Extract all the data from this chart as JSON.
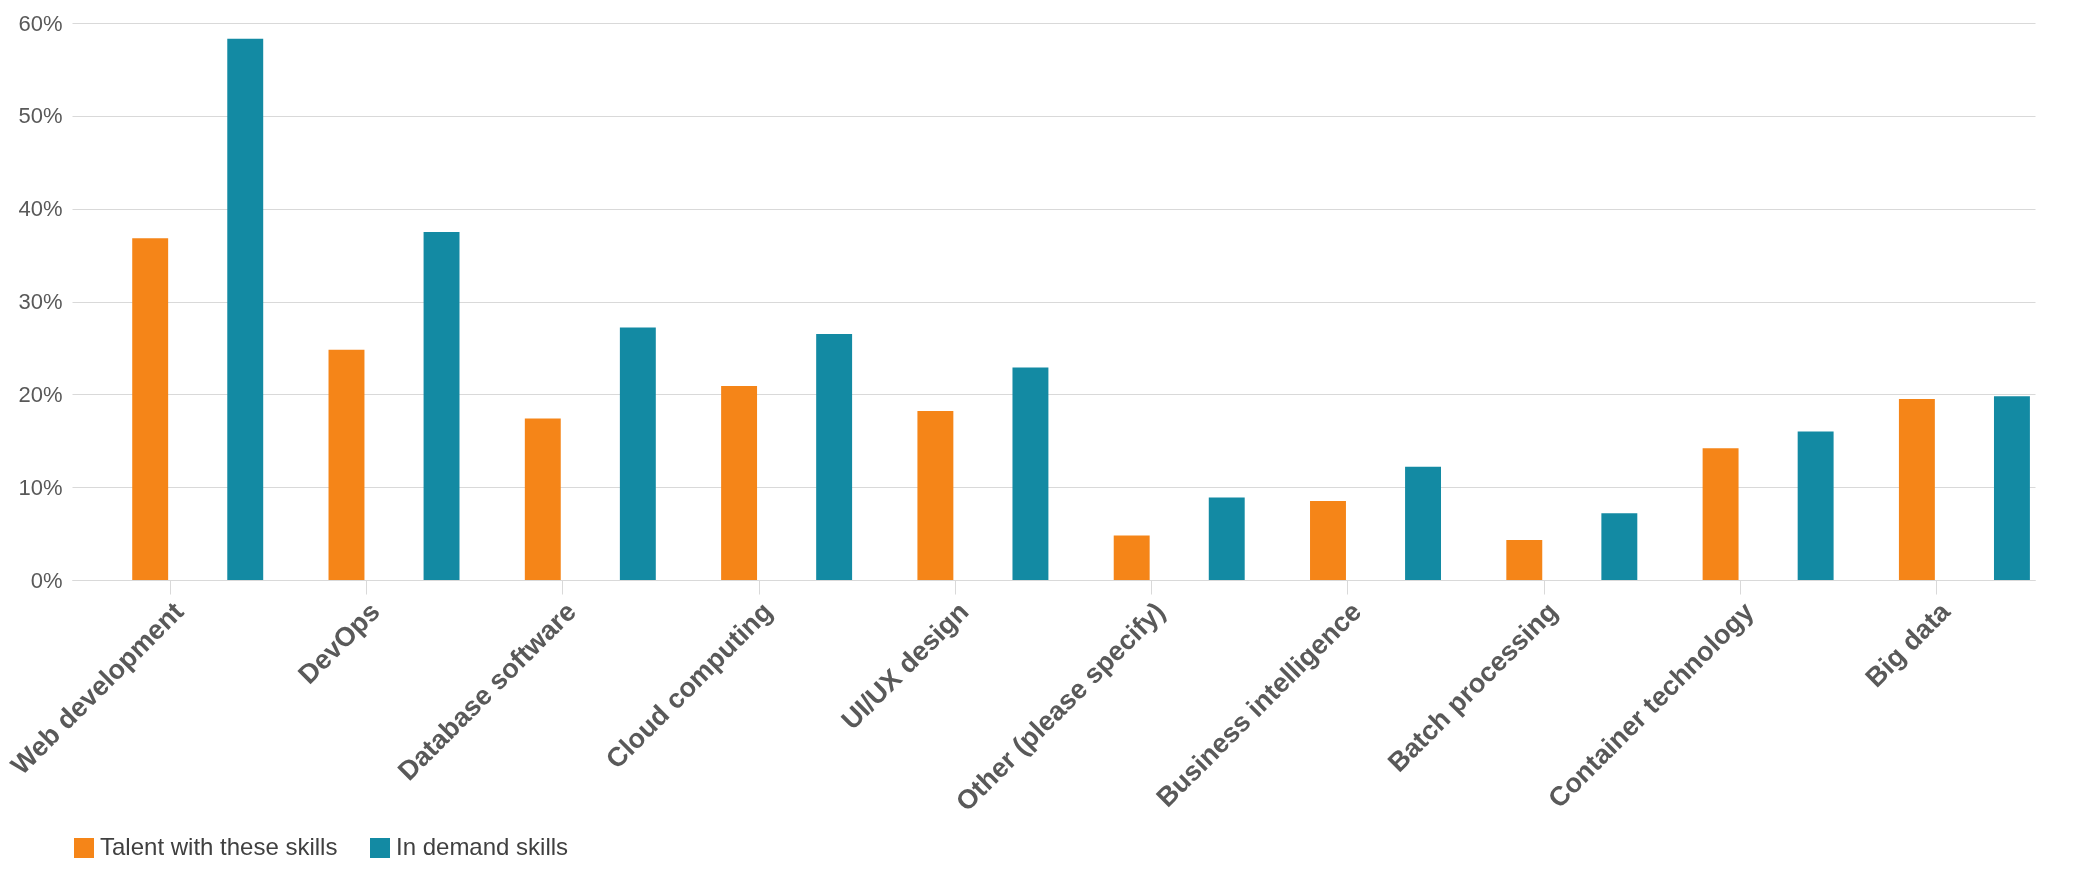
{
  "chart_data": {
    "type": "bar",
    "categories": [
      "Web development",
      "DevOps",
      "Database software",
      "Cloud computing",
      "UI/UX design",
      "Other (please specify)",
      "Business intelligence",
      "Batch processing",
      "Container technology",
      "Big data"
    ],
    "series": [
      {
        "name": "Talent with these skills",
        "color": "#f58518",
        "values": [
          36.8,
          24.8,
          17.4,
          20.9,
          18.2,
          4.8,
          8.5,
          4.3,
          14.2,
          19.5
        ]
      },
      {
        "name": "In demand skills",
        "color": "#138aa3",
        "values": [
          58.3,
          37.5,
          27.2,
          26.5,
          22.9,
          8.9,
          12.2,
          7.2,
          16.0,
          19.8
        ]
      }
    ],
    "ylim": [
      0,
      60
    ],
    "yticks": [
      {
        "value": 0,
        "label": "0%"
      },
      {
        "value": 10,
        "label": "10%"
      },
      {
        "value": 20,
        "label": "20%"
      },
      {
        "value": 30,
        "label": "30%"
      },
      {
        "value": 40,
        "label": "40%"
      },
      {
        "value": 50,
        "label": "50%"
      },
      {
        "value": 60,
        "label": "60%"
      }
    ],
    "grid": "y",
    "legend": "bottom"
  }
}
